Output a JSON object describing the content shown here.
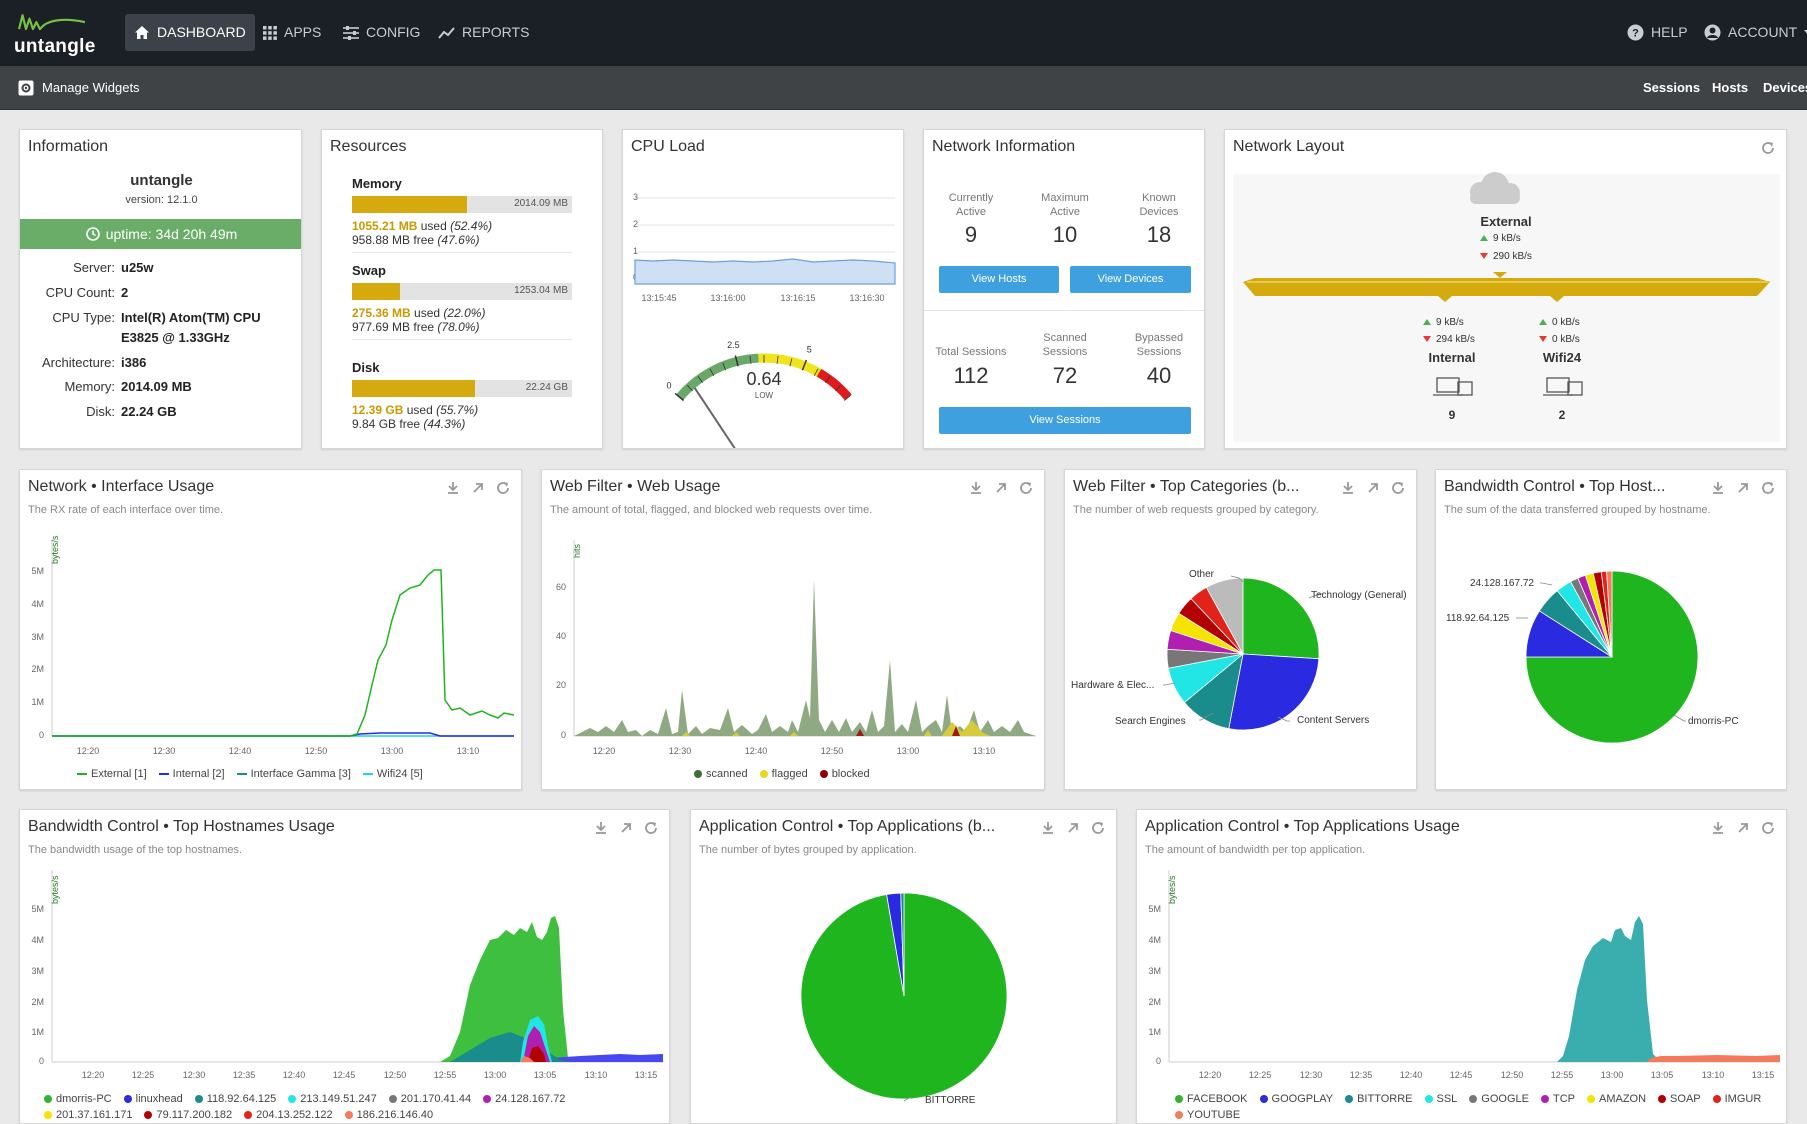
{
  "nav": {
    "logo_text": "untangle",
    "dashboard": "DASHBOARD",
    "apps": "APPS",
    "config": "CONFIG",
    "reports": "REPORTS",
    "help": "HELP",
    "account": "ACCOUNT"
  },
  "subnav": {
    "manage_widgets": "Manage Widgets",
    "sessions": "Sessions",
    "hosts": "Hosts",
    "devices": "Devices"
  },
  "information": {
    "title": "Information",
    "hostname": "untangle",
    "version": "version: 12.1.0",
    "uptime": "uptime: 34d 20h 49m",
    "rows": [
      {
        "k": "Server:",
        "v": "u25w"
      },
      {
        "k": "CPU Count:",
        "v": "2"
      },
      {
        "k": "CPU Type:",
        "v": "Intel(R) Atom(TM) CPU",
        "v2": "E3825 @ 1.33GHz"
      },
      {
        "k": "Architecture:",
        "v": "i386"
      },
      {
        "k": "Memory:",
        "v": "2014.09 MB"
      },
      {
        "k": "Disk:",
        "v": "22.24 GB"
      }
    ]
  },
  "resources": {
    "title": "Resources",
    "items": [
      {
        "name": "Memory",
        "total": "2014.09 MB",
        "used": "1055.21 MB",
        "used_pct": "(52.4%)",
        "free": "958.88 MB",
        "free_pct": "(47.6%)",
        "fraction": 0.524,
        "used_word": "used",
        "free_word": "free"
      },
      {
        "name": "Swap",
        "total": "1253.04 MB",
        "used": "275.36 MB",
        "used_pct": "(22.0%)",
        "free": "977.69 MB",
        "free_pct": "(78.0%)",
        "fraction": 0.22,
        "used_word": "used",
        "free_word": "free"
      },
      {
        "name": "Disk",
        "total": "22.24 GB",
        "used": "12.39 GB",
        "used_pct": "(55.7%)",
        "free": "9.84 GB",
        "free_pct": "(44.3%)",
        "fraction": 0.557,
        "used_word": "used",
        "free_word": "free"
      }
    ]
  },
  "cpu_load": {
    "title": "CPU Load",
    "y_ticks": [
      "3",
      "2",
      "1",
      "0"
    ],
    "x_ticks": [
      "13:15:45",
      "13:16:00",
      "13:16:15",
      "13:16:30"
    ],
    "value": "0.64",
    "level": "LOW",
    "gauge_ticks": [
      "0",
      "2.5",
      "5"
    ],
    "gauge_value": 0.64,
    "gauge_max": 7
  },
  "network_info": {
    "title": "Network Information",
    "currently_active_l1": "Currently",
    "currently_active_l2": "Active",
    "currently_active": "9",
    "maximum_active_l1": "Maximum",
    "maximum_active_l2": "Active",
    "maximum_active": "10",
    "known_devices_l1": "Known",
    "known_devices_l2": "Devices",
    "known_devices": "18",
    "view_hosts": "View Hosts",
    "view_devices": "View Devices",
    "total_sessions_l1": "Total Sessions",
    "total_sessions": "112",
    "scanned_l1": "Scanned",
    "scanned_l2": "Sessions",
    "scanned_sessions": "72",
    "bypassed_l1": "Bypassed",
    "bypassed_l2": "Sessions",
    "bypassed_sessions": "40",
    "view_sessions": "View Sessions"
  },
  "network_layout": {
    "title": "Network Layout",
    "external": {
      "name": "External",
      "up": "9 kB/s",
      "down": "290 kB/s"
    },
    "internal": {
      "name": "Internal",
      "up": "9 kB/s",
      "down": "294 kB/s",
      "count": "9"
    },
    "wifi": {
      "name": "Wifi24",
      "up": "0 kB/s",
      "down": "0 kB/s",
      "count": "2"
    }
  },
  "net_iface": {
    "title": "Network • Interface Usage",
    "subtitle": "The RX rate of each interface over time.",
    "ylabel": "bytes/s",
    "y_ticks": [
      "5M",
      "4M",
      "3M",
      "2M",
      "1M",
      "0"
    ],
    "x_ticks": [
      "12:20",
      "12:30",
      "12:40",
      "12:50",
      "13:00",
      "13:10"
    ],
    "legend": [
      "External [1]",
      "Internal [2]",
      "Interface Gamma [3]",
      "Wifi24 [5]"
    ]
  },
  "web_usage": {
    "title": "Web Filter • Web Usage",
    "subtitle": "The amount of total, flagged, and blocked web requests over time.",
    "ylabel": "hits",
    "y_ticks": [
      "60",
      "40",
      "20",
      "0"
    ],
    "x_ticks": [
      "12:20",
      "12:30",
      "12:40",
      "12:50",
      "13:00",
      "13:10"
    ],
    "legend": [
      "scanned",
      "flagged",
      "blocked"
    ]
  },
  "top_categories": {
    "title": "Web Filter • Top Categories (b...",
    "subtitle": "The number of web requests grouped by category.",
    "labels": [
      "Other",
      "Technology (General)",
      "Hardware & Elec...",
      "Search Engines",
      "Content Servers"
    ]
  },
  "top_host": {
    "title": "Bandwidth Control • Top Host...",
    "subtitle": "The sum of the data transferred grouped by hostname.",
    "labels": [
      "24.128.167.72",
      "118.92.64.125",
      "dmorris-PC"
    ]
  },
  "hostnames_usage": {
    "title": "Bandwidth Control • Top Hostnames Usage",
    "subtitle": "The bandwidth usage of the top hostnames.",
    "ylabel": "bytes/s",
    "y_ticks": [
      "5M",
      "4M",
      "3M",
      "2M",
      "1M",
      "0"
    ],
    "x_ticks": [
      "12:20",
      "12:25",
      "12:30",
      "12:35",
      "12:40",
      "12:45",
      "12:50",
      "12:55",
      "13:00",
      "13:05",
      "13:10",
      "13:15"
    ],
    "legend": [
      {
        "name": "dmorris-PC",
        "color": "#2fb52f"
      },
      {
        "name": "linuxhead",
        "color": "#2a2ae0"
      },
      {
        "name": "118.92.64.125",
        "color": "#1a8c8c"
      },
      {
        "name": "213.149.51.247",
        "color": "#22e6e6"
      },
      {
        "name": "201.170.41.44",
        "color": "#777777"
      },
      {
        "name": "24.128.167.72",
        "color": "#b01fb0"
      },
      {
        "name": "201.37.161.171",
        "color": "#f5e400"
      },
      {
        "name": "79.117.200.182",
        "color": "#b30000"
      },
      {
        "name": "204.13.252.122",
        "color": "#e2231a"
      },
      {
        "name": "186.216.146.40",
        "color": "#f47a5a"
      }
    ]
  },
  "top_apps": {
    "title": "Application Control • Top Applications (b...",
    "subtitle": "The number of bytes grouped by application.",
    "labels": [
      "BITTORRE"
    ]
  },
  "apps_usage": {
    "title": "Application Control • Top Applications Usage",
    "subtitle": "The amount of bandwidth per top application.",
    "ylabel": "bytes/s",
    "y_ticks": [
      "5M",
      "4M",
      "3M",
      "2M",
      "1M",
      "0"
    ],
    "x_ticks": [
      "12:20",
      "12:25",
      "12:30",
      "12:35",
      "12:40",
      "12:45",
      "12:50",
      "12:55",
      "13:00",
      "13:05",
      "13:10",
      "13:15"
    ],
    "legend": [
      {
        "name": "FACEBOOK",
        "color": "#2fb52f"
      },
      {
        "name": "GOOGPLAY",
        "color": "#2a2ae0"
      },
      {
        "name": "BITTORRE",
        "color": "#1a8c8c"
      },
      {
        "name": "SSL",
        "color": "#22e6e6"
      },
      {
        "name": "GOOGLE",
        "color": "#777777"
      },
      {
        "name": "TCP",
        "color": "#b01fb0"
      },
      {
        "name": "AMAZON",
        "color": "#f5e400"
      },
      {
        "name": "SOAP",
        "color": "#b30000"
      },
      {
        "name": "IMGUR",
        "color": "#e2231a"
      },
      {
        "name": "YOUTUBE",
        "color": "#f47a5a"
      }
    ]
  }
}
